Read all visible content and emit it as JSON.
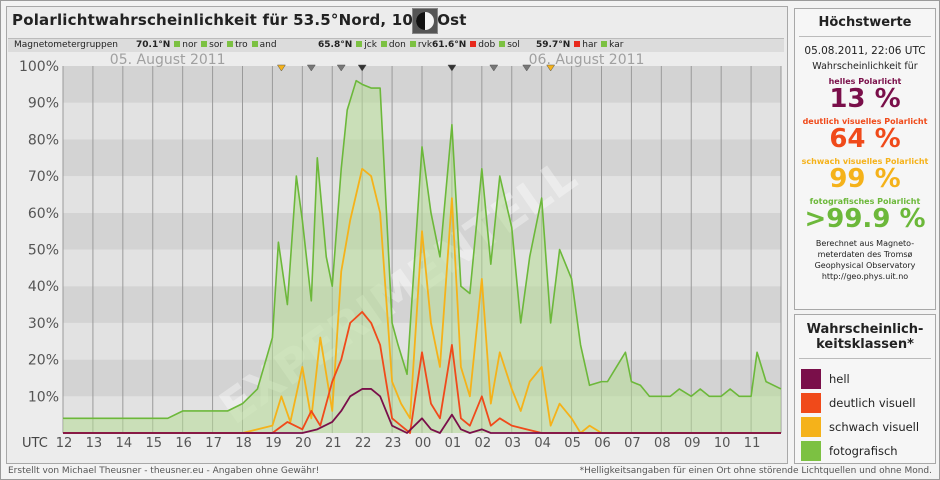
{
  "header": {
    "title": "Polarlichtwahrscheinlichkeit für 53.5°Nord, 10.0°Ost",
    "moon_icon": "moon-phase-icon"
  },
  "groups": {
    "label": "Magnetometergruppen",
    "items": [
      {
        "lat": "70.1°N",
        "stations": [
          {
            "code": "nor",
            "color": "#7cc142"
          },
          {
            "code": "sor",
            "color": "#7cc142"
          },
          {
            "code": "tro",
            "color": "#7cc142"
          },
          {
            "code": "and",
            "color": "#7cc142"
          }
        ]
      },
      {
        "lat": "65.8°N",
        "stations": [
          {
            "code": "jck",
            "color": "#7cc142"
          },
          {
            "code": "don",
            "color": "#7cc142"
          },
          {
            "code": "rvk",
            "color": "#7cc142"
          }
        ]
      },
      {
        "lat": "61.6°N",
        "stations": [
          {
            "code": "dob",
            "color": "#e8291c"
          },
          {
            "code": "sol",
            "color": "#7cc142"
          }
        ]
      },
      {
        "lat": "59.7°N",
        "stations": [
          {
            "code": "har",
            "color": "#e8291c"
          },
          {
            "code": "kar",
            "color": "#7cc142"
          }
        ]
      }
    ]
  },
  "side": {
    "heading": "Höchstwerte",
    "datetime": "05.08.2011, 22:06 UTC",
    "prob_label": "Wahrscheinlichkeit für",
    "classes": [
      {
        "label": "helles Polarlicht",
        "value": "13 %",
        "color": "#7a0f4a"
      },
      {
        "label": "deutlich visuelles Polarlicht",
        "value": "64 %",
        "color": "#f04a1a"
      },
      {
        "label": "schwach visuelles Polarlicht",
        "value": "99 %",
        "color": "#f5b21a"
      },
      {
        "label": "fotografisches Polarlicht",
        "value": ">99.9 %",
        "color": "#6cb83a"
      }
    ],
    "source_line1": "Berechnet aus Magneto-",
    "source_line2": "meterdaten des Tromsø",
    "source_line3": "Geophysical Observatory",
    "source_line4": "http://geo.phys.uit.no"
  },
  "legend": {
    "heading_line1": "Wahrscheinlich-",
    "heading_line2": "keitsklassen*",
    "items": [
      {
        "label": "hell",
        "color": "#7a0f4a"
      },
      {
        "label": "deutlich visuell",
        "color": "#f04a1a"
      },
      {
        "label": "schwach visuell",
        "color": "#f5b21a"
      },
      {
        "label": "fotografisch",
        "color": "#7cc142"
      }
    ]
  },
  "footer": {
    "left": "Erstellt von Michael Theusner - theusner.eu - Angaben ohne Gewähr!",
    "right": "*Helligkeitsangaben für einen Ort ohne störende Lichtquellen und ohne Mond."
  },
  "watermark": "EXPERIMENTELL",
  "chart_data": {
    "type": "line",
    "x_unit": "UTC hour",
    "xlabel": "UTC",
    "tick_labels": [
      "12",
      "13",
      "14",
      "15",
      "16",
      "17",
      "18",
      "19",
      "20",
      "21",
      "22",
      "23",
      "00",
      "01",
      "02",
      "03",
      "04",
      "05",
      "06",
      "07",
      "08",
      "09",
      "10",
      "11"
    ],
    "date_labels": [
      {
        "text": "05. August 2011",
        "hour": 15.5
      },
      {
        "text": "06. August 2011",
        "hour": 29.5
      }
    ],
    "ylim": [
      0,
      100
    ],
    "y_ticks": [
      "10%",
      "20%",
      "30%",
      "40%",
      "50%",
      "60%",
      "70%",
      "80%",
      "90%",
      "100%"
    ],
    "x_range": [
      12,
      36
    ],
    "series": [
      {
        "name": "fotografisch",
        "color": "#6cb83a",
        "x": [
          12,
          14,
          15.5,
          16,
          16.5,
          17,
          17.5,
          18,
          18.5,
          19,
          19.2,
          19.5,
          19.8,
          20,
          20.3,
          20.5,
          20.8,
          21,
          21.3,
          21.5,
          21.8,
          22,
          22.3,
          22.6,
          23,
          23.2,
          23.5,
          24,
          24.3,
          24.6,
          25,
          25.3,
          25.6,
          26,
          26.3,
          26.6,
          27,
          27.3,
          27.6,
          28,
          28.3,
          28.6,
          29,
          29.3,
          29.6,
          30,
          30.2,
          30.5,
          30.8,
          31,
          31.3,
          31.6,
          32,
          32.3,
          32.6,
          33,
          33.3,
          33.6,
          34,
          34.3,
          34.6,
          35,
          35.2,
          35.5,
          36
        ],
        "y": [
          4,
          4,
          4,
          6,
          6,
          6,
          6,
          8,
          12,
          26,
          52,
          35,
          70,
          58,
          36,
          75,
          48,
          40,
          72,
          88,
          96,
          95,
          94,
          94,
          30,
          24,
          16,
          78,
          60,
          48,
          84,
          40,
          38,
          72,
          46,
          70,
          56,
          30,
          48,
          64,
          30,
          50,
          42,
          24,
          13,
          14,
          14,
          18,
          22,
          14,
          13,
          10,
          10,
          10,
          12,
          10,
          12,
          10,
          10,
          12,
          10,
          10,
          22,
          14,
          12
        ]
      },
      {
        "name": "schwach visuell",
        "color": "#f5b21a",
        "x": [
          12,
          18,
          19,
          19.3,
          19.6,
          20,
          20.3,
          20.6,
          21,
          21.3,
          21.6,
          22,
          22.3,
          22.6,
          23,
          23.3,
          23.6,
          24,
          24.3,
          24.6,
          25,
          25.3,
          25.6,
          26,
          26.3,
          26.6,
          27,
          27.3,
          27.6,
          28,
          28.3,
          28.6,
          29,
          29.3,
          29.6,
          30,
          36
        ],
        "y": [
          0,
          0,
          2,
          10,
          3,
          18,
          4,
          26,
          6,
          44,
          58,
          72,
          70,
          60,
          14,
          8,
          4,
          55,
          30,
          18,
          64,
          18,
          10,
          42,
          8,
          22,
          12,
          6,
          14,
          18,
          2,
          8,
          4,
          0,
          2,
          0,
          0
        ]
      },
      {
        "name": "deutlich visuell",
        "color": "#f04a1a",
        "x": [
          12,
          18,
          19,
          19.5,
          20,
          20.3,
          20.6,
          21,
          21.3,
          21.6,
          22,
          22.3,
          22.6,
          23,
          23.3,
          23.6,
          24,
          24.3,
          24.6,
          25,
          25.3,
          25.6,
          26,
          26.3,
          26.6,
          27,
          27.5,
          28,
          36
        ],
        "y": [
          0,
          0,
          0,
          3,
          1,
          6,
          2,
          14,
          20,
          30,
          33,
          30,
          24,
          4,
          2,
          0,
          22,
          8,
          4,
          24,
          4,
          2,
          10,
          2,
          4,
          2,
          1,
          0,
          0
        ]
      },
      {
        "name": "hell",
        "color": "#7a0f4a",
        "x": [
          12,
          19,
          20,
          20.5,
          21,
          21.3,
          21.6,
          22,
          22.3,
          22.6,
          23,
          23.5,
          24,
          24.3,
          24.6,
          25,
          25.3,
          25.6,
          26,
          26.3,
          26.6,
          27,
          28,
          36
        ],
        "y": [
          0,
          0,
          0,
          1,
          3,
          6,
          10,
          12,
          12,
          10,
          2,
          0,
          4,
          1,
          0,
          5,
          1,
          0,
          1,
          0,
          0,
          0,
          0,
          0
        ]
      }
    ],
    "markers_top": [
      {
        "hour": 19.3,
        "color": "#f5b21a"
      },
      {
        "hour": 20.3,
        "color": "#777777"
      },
      {
        "hour": 21.3,
        "color": "#777777"
      },
      {
        "hour": 22.0,
        "color": "#333333"
      },
      {
        "hour": 25.0,
        "color": "#333333"
      },
      {
        "hour": 26.4,
        "color": "#777777"
      },
      {
        "hour": 27.5,
        "color": "#777777"
      },
      {
        "hour": 28.3,
        "color": "#f5b21a"
      }
    ]
  }
}
